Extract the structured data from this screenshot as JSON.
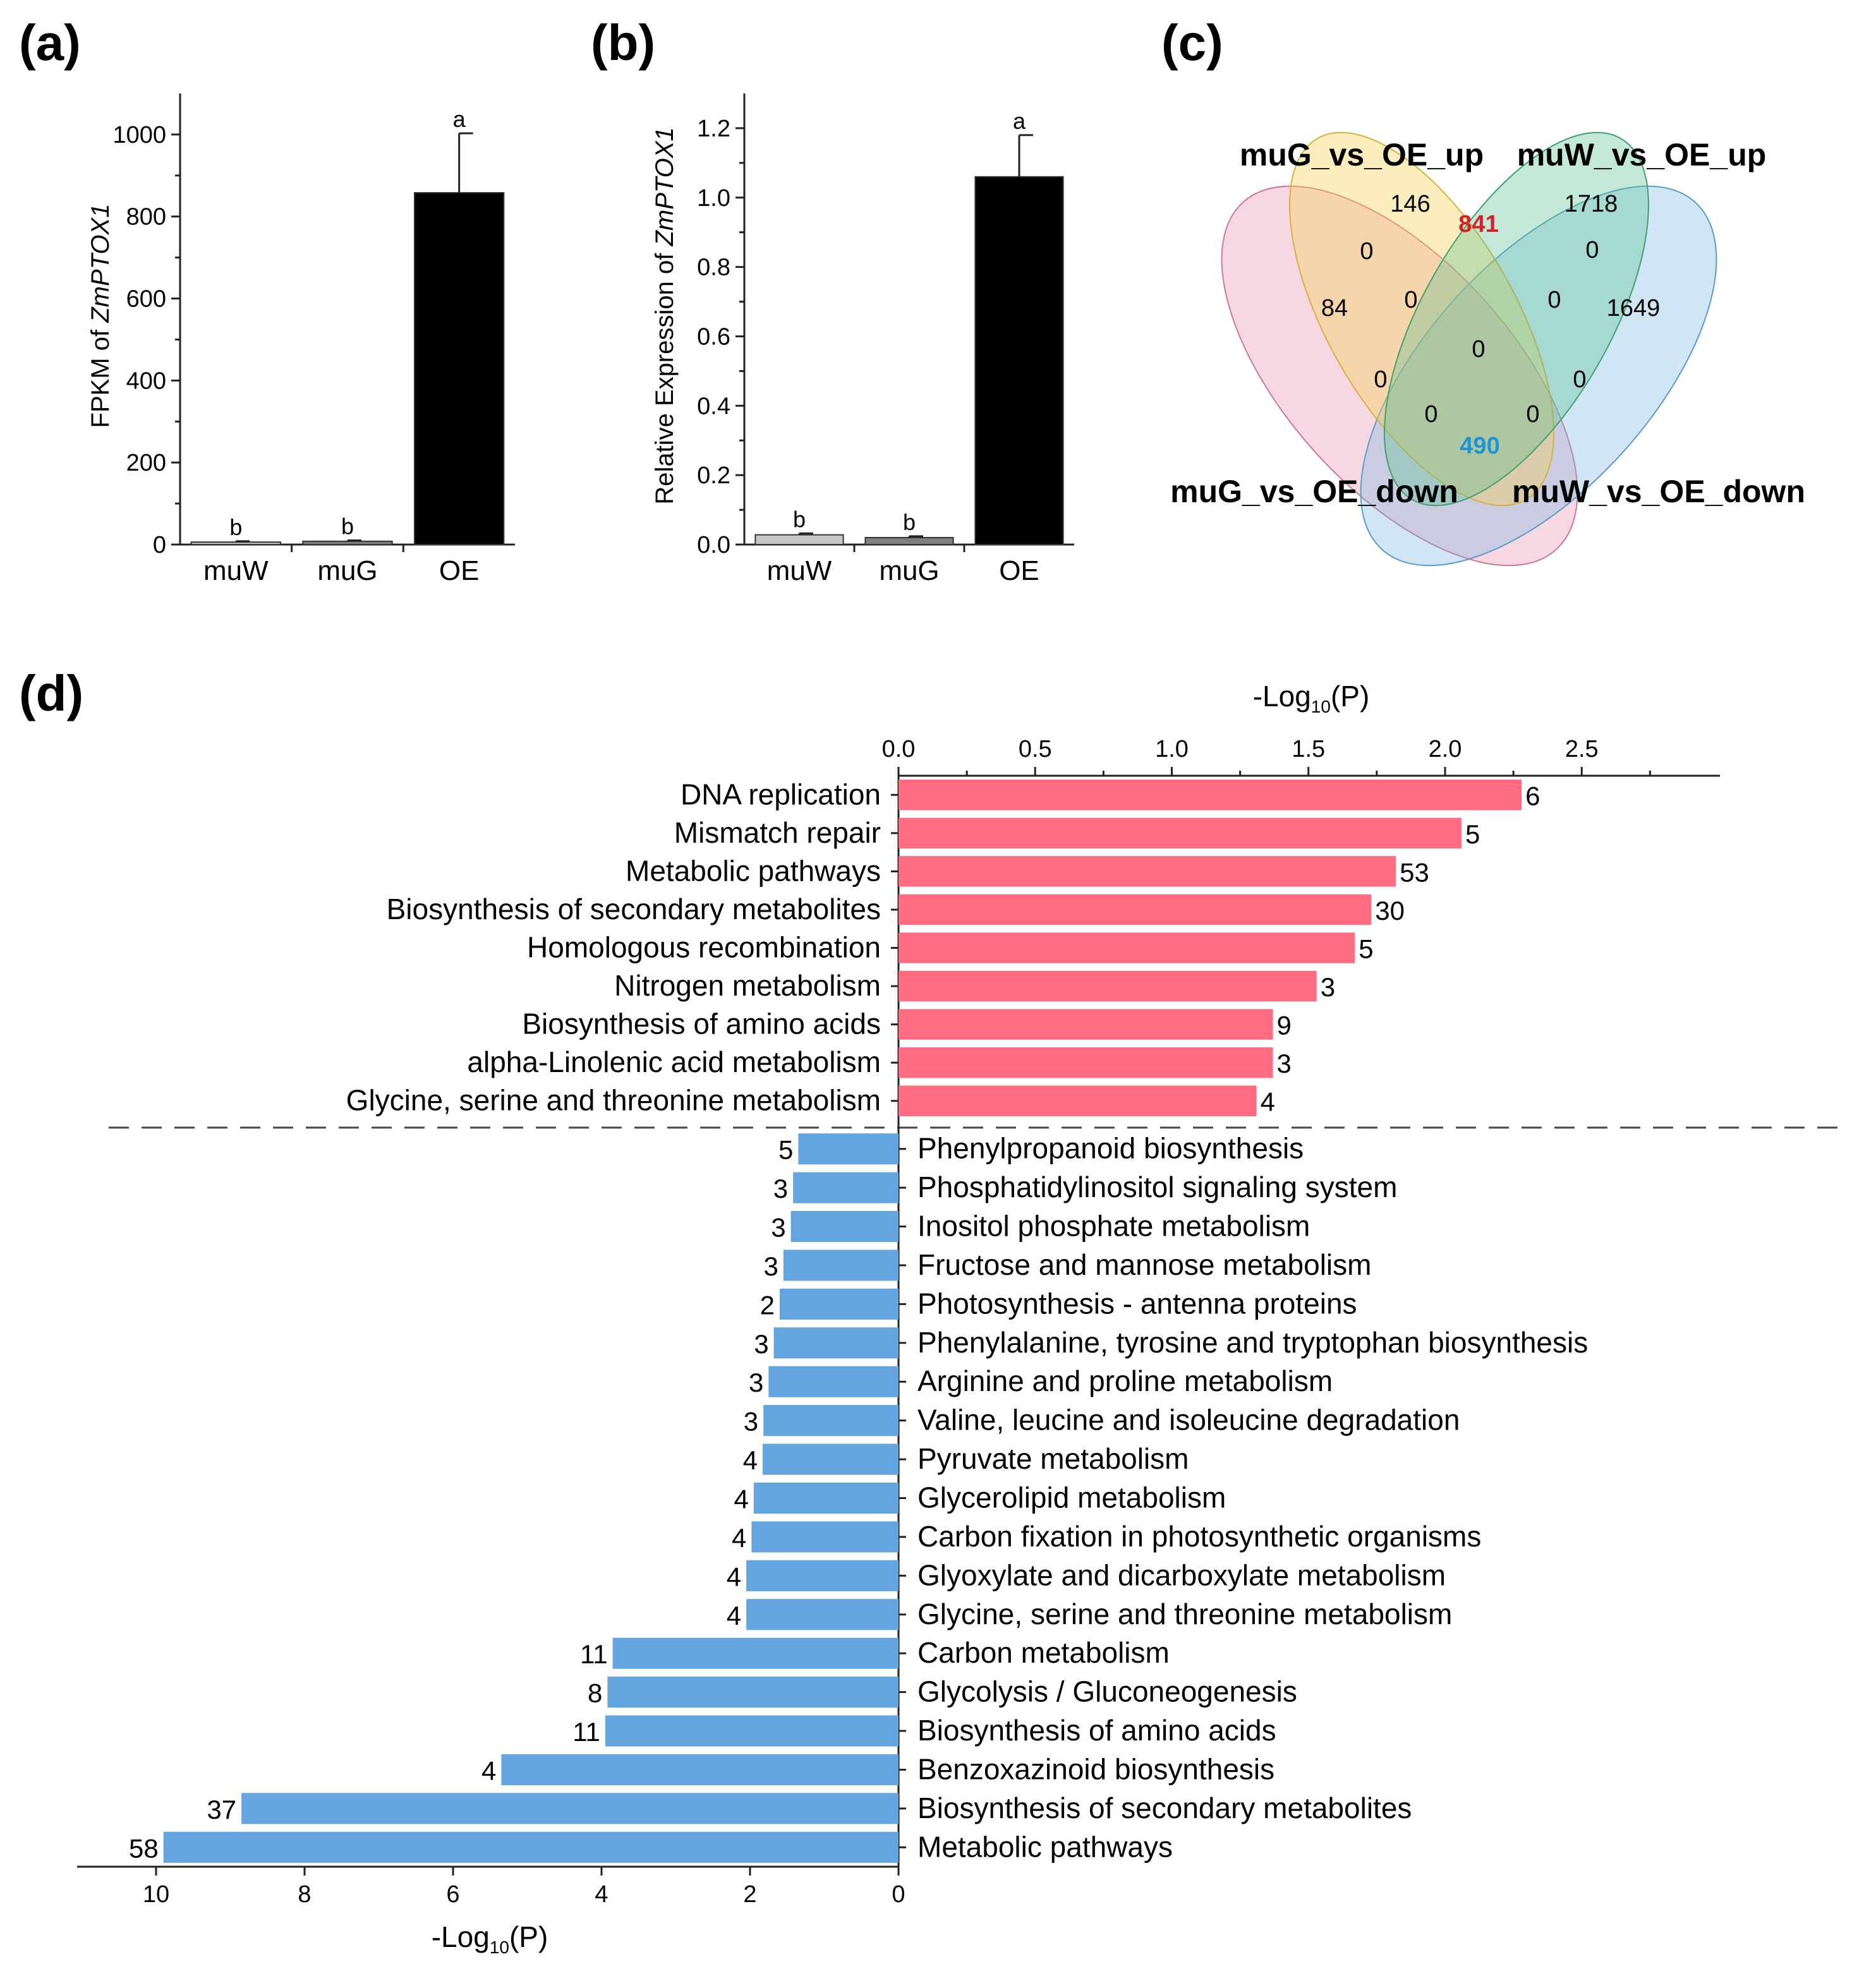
{
  "chart_data": [
    {
      "panel": "(a)",
      "type": "bar",
      "categories": [
        "muW",
        "muG",
        "OE"
      ],
      "values": [
        6,
        8,
        858
      ],
      "errors": [
        2,
        2,
        145
      ],
      "significance": [
        "b",
        "b",
        "a"
      ],
      "colors": [
        "#c8c8c8",
        "#808080",
        "#000000"
      ],
      "ylabel_pre": "FPKM of ",
      "ylabel_gene": "ZmPTOX1",
      "ylim": [
        0,
        1100
      ],
      "yticks": [
        0,
        200,
        400,
        600,
        800,
        1000
      ]
    },
    {
      "panel": "(b)",
      "type": "bar",
      "categories": [
        "muW",
        "muG",
        "OE"
      ],
      "values": [
        0.028,
        0.02,
        1.06
      ],
      "errors": [
        0.004,
        0.004,
        0.12
      ],
      "significance": [
        "b",
        "b",
        "a"
      ],
      "colors": [
        "#c8c8c8",
        "#808080",
        "#000000"
      ],
      "ylabel_pre": "Relative Expression of ",
      "ylabel_gene": "ZmPTOX1",
      "ylim": [
        0,
        1.3
      ],
      "yticks": [
        "0.0",
        "0.2",
        "0.4",
        "0.6",
        "0.8",
        "1.0",
        "1.2"
      ]
    },
    {
      "panel": "(c)",
      "type": "venn",
      "sets": [
        "muG_vs_OE_up",
        "muW_vs_OE_up",
        "muG_vs_OE_down",
        "muW_vs_OE_down"
      ],
      "regions": {
        "muG_up_only": "146",
        "muW_up_only": "1718",
        "muG_down_only": "84",
        "muW_down_only": "1649",
        "muG_up__muW_up": "841",
        "muG_up__muG_down": "0",
        "muW_up__muW_down": "0",
        "muG_up__muG_down__muW_up": "0",
        "muW_up__muG_up__muW_down": "0",
        "all_four": "0",
        "muG_down__muW_up": "0",
        "muG_up__muW_down": "0",
        "muG_down__muW_up__muW_down": "0",
        "muG_down__muG_up__muW_down": "0",
        "muG_down__muW_down": "490"
      },
      "highlight_colors": {
        "up_overlap": "#d61f26",
        "down_overlap": "#1e96d6"
      }
    },
    {
      "panel": "(d)",
      "type": "bar",
      "orientation": "horizontal",
      "xlabel_pre": "-Log",
      "xlabel_sub": "10",
      "xlabel_post": "(P)",
      "up": {
        "color": "#ff6b81",
        "xlim": [
          0,
          3.0
        ],
        "xticks": [
          "0.0",
          "0.5",
          "1.0",
          "1.5",
          "2.0",
          "2.5"
        ],
        "categories": [
          "DNA replication",
          "Mismatch repair",
          "Metabolic pathways",
          "Biosynthesis of secondary metabolites",
          "Homologous recombination",
          "Nitrogen metabolism",
          "Biosynthesis of amino acids",
          "alpha-Linolenic acid metabolism",
          "Glycine, serine and threonine metabolism"
        ],
        "values": [
          2.28,
          2.06,
          1.82,
          1.73,
          1.67,
          1.53,
          1.37,
          1.37,
          1.31
        ],
        "counts": [
          "6",
          "5",
          "53",
          "30",
          "5",
          "3",
          "9",
          "3",
          "4"
        ]
      },
      "down": {
        "color": "#64a5e0",
        "xlim": [
          0,
          11
        ],
        "xticks": [
          "10",
          "8",
          "6",
          "4",
          "2",
          "0"
        ],
        "categories": [
          "Phenylpropanoid biosynthesis",
          "Phosphatidylinositol signaling system",
          "Inositol phosphate metabolism",
          "Fructose and mannose metabolism",
          "Photosynthesis - antenna proteins",
          "Phenylalanine, tyrosine and tryptophan biosynthesis",
          "Arginine and proline metabolism",
          "Valine, leucine and isoleucine degradation",
          "Pyruvate metabolism",
          "Glycerolipid metabolism",
          "Carbon fixation in photosynthetic organisms",
          "Glyoxylate and dicarboxylate metabolism",
          "Glycine, serine and threonine metabolism",
          "Carbon metabolism",
          "Glycolysis / Gluconeogenesis",
          "Biosynthesis of amino acids",
          "Benzoxazinoid biosynthesis",
          "Biosynthesis of secondary metabolites",
          "Metabolic pathways"
        ],
        "values": [
          1.35,
          1.42,
          1.45,
          1.55,
          1.6,
          1.68,
          1.75,
          1.82,
          1.83,
          1.95,
          1.98,
          2.05,
          2.05,
          3.85,
          3.92,
          3.95,
          5.35,
          8.85,
          9.9
        ],
        "counts": [
          "5",
          "3",
          "3",
          "3",
          "2",
          "3",
          "3",
          "3",
          "4",
          "4",
          "4",
          "4",
          "4",
          "11",
          "8",
          "11",
          "4",
          "37",
          "58"
        ]
      }
    }
  ]
}
